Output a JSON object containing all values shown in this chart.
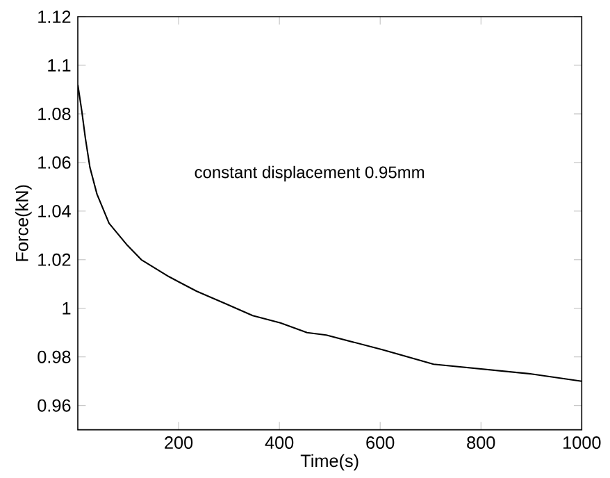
{
  "chart_data": {
    "type": "line",
    "xlabel": "Time(s)",
    "ylabel": "Force(kN)",
    "annotations": [
      "constant displacement 0.95mm"
    ],
    "x": [
      0,
      8,
      15,
      24,
      38,
      62,
      98,
      126,
      181,
      236,
      292,
      347,
      402,
      455,
      493,
      604,
      706,
      803,
      900,
      1000
    ],
    "series": [
      {
        "color": "#000000",
        "values": [
          1.092,
          1.081,
          1.07,
          1.058,
          1.047,
          1.035,
          1.026,
          1.02,
          1.013,
          1.007,
          1.002,
          0.997,
          0.994,
          0.99,
          0.989,
          0.983,
          0.977,
          0.975,
          0.973,
          0.97
        ]
      }
    ],
    "xlim": [
      0,
      1000
    ],
    "ylim": [
      0.95,
      1.12
    ],
    "xticks": [
      200,
      400,
      600,
      800,
      1000
    ],
    "yticks": [
      0.96,
      0.98,
      1,
      1.02,
      1.04,
      1.06,
      1.08,
      1.1,
      1.12
    ],
    "grid": false,
    "marker": "none",
    "line_style": "solid"
  }
}
